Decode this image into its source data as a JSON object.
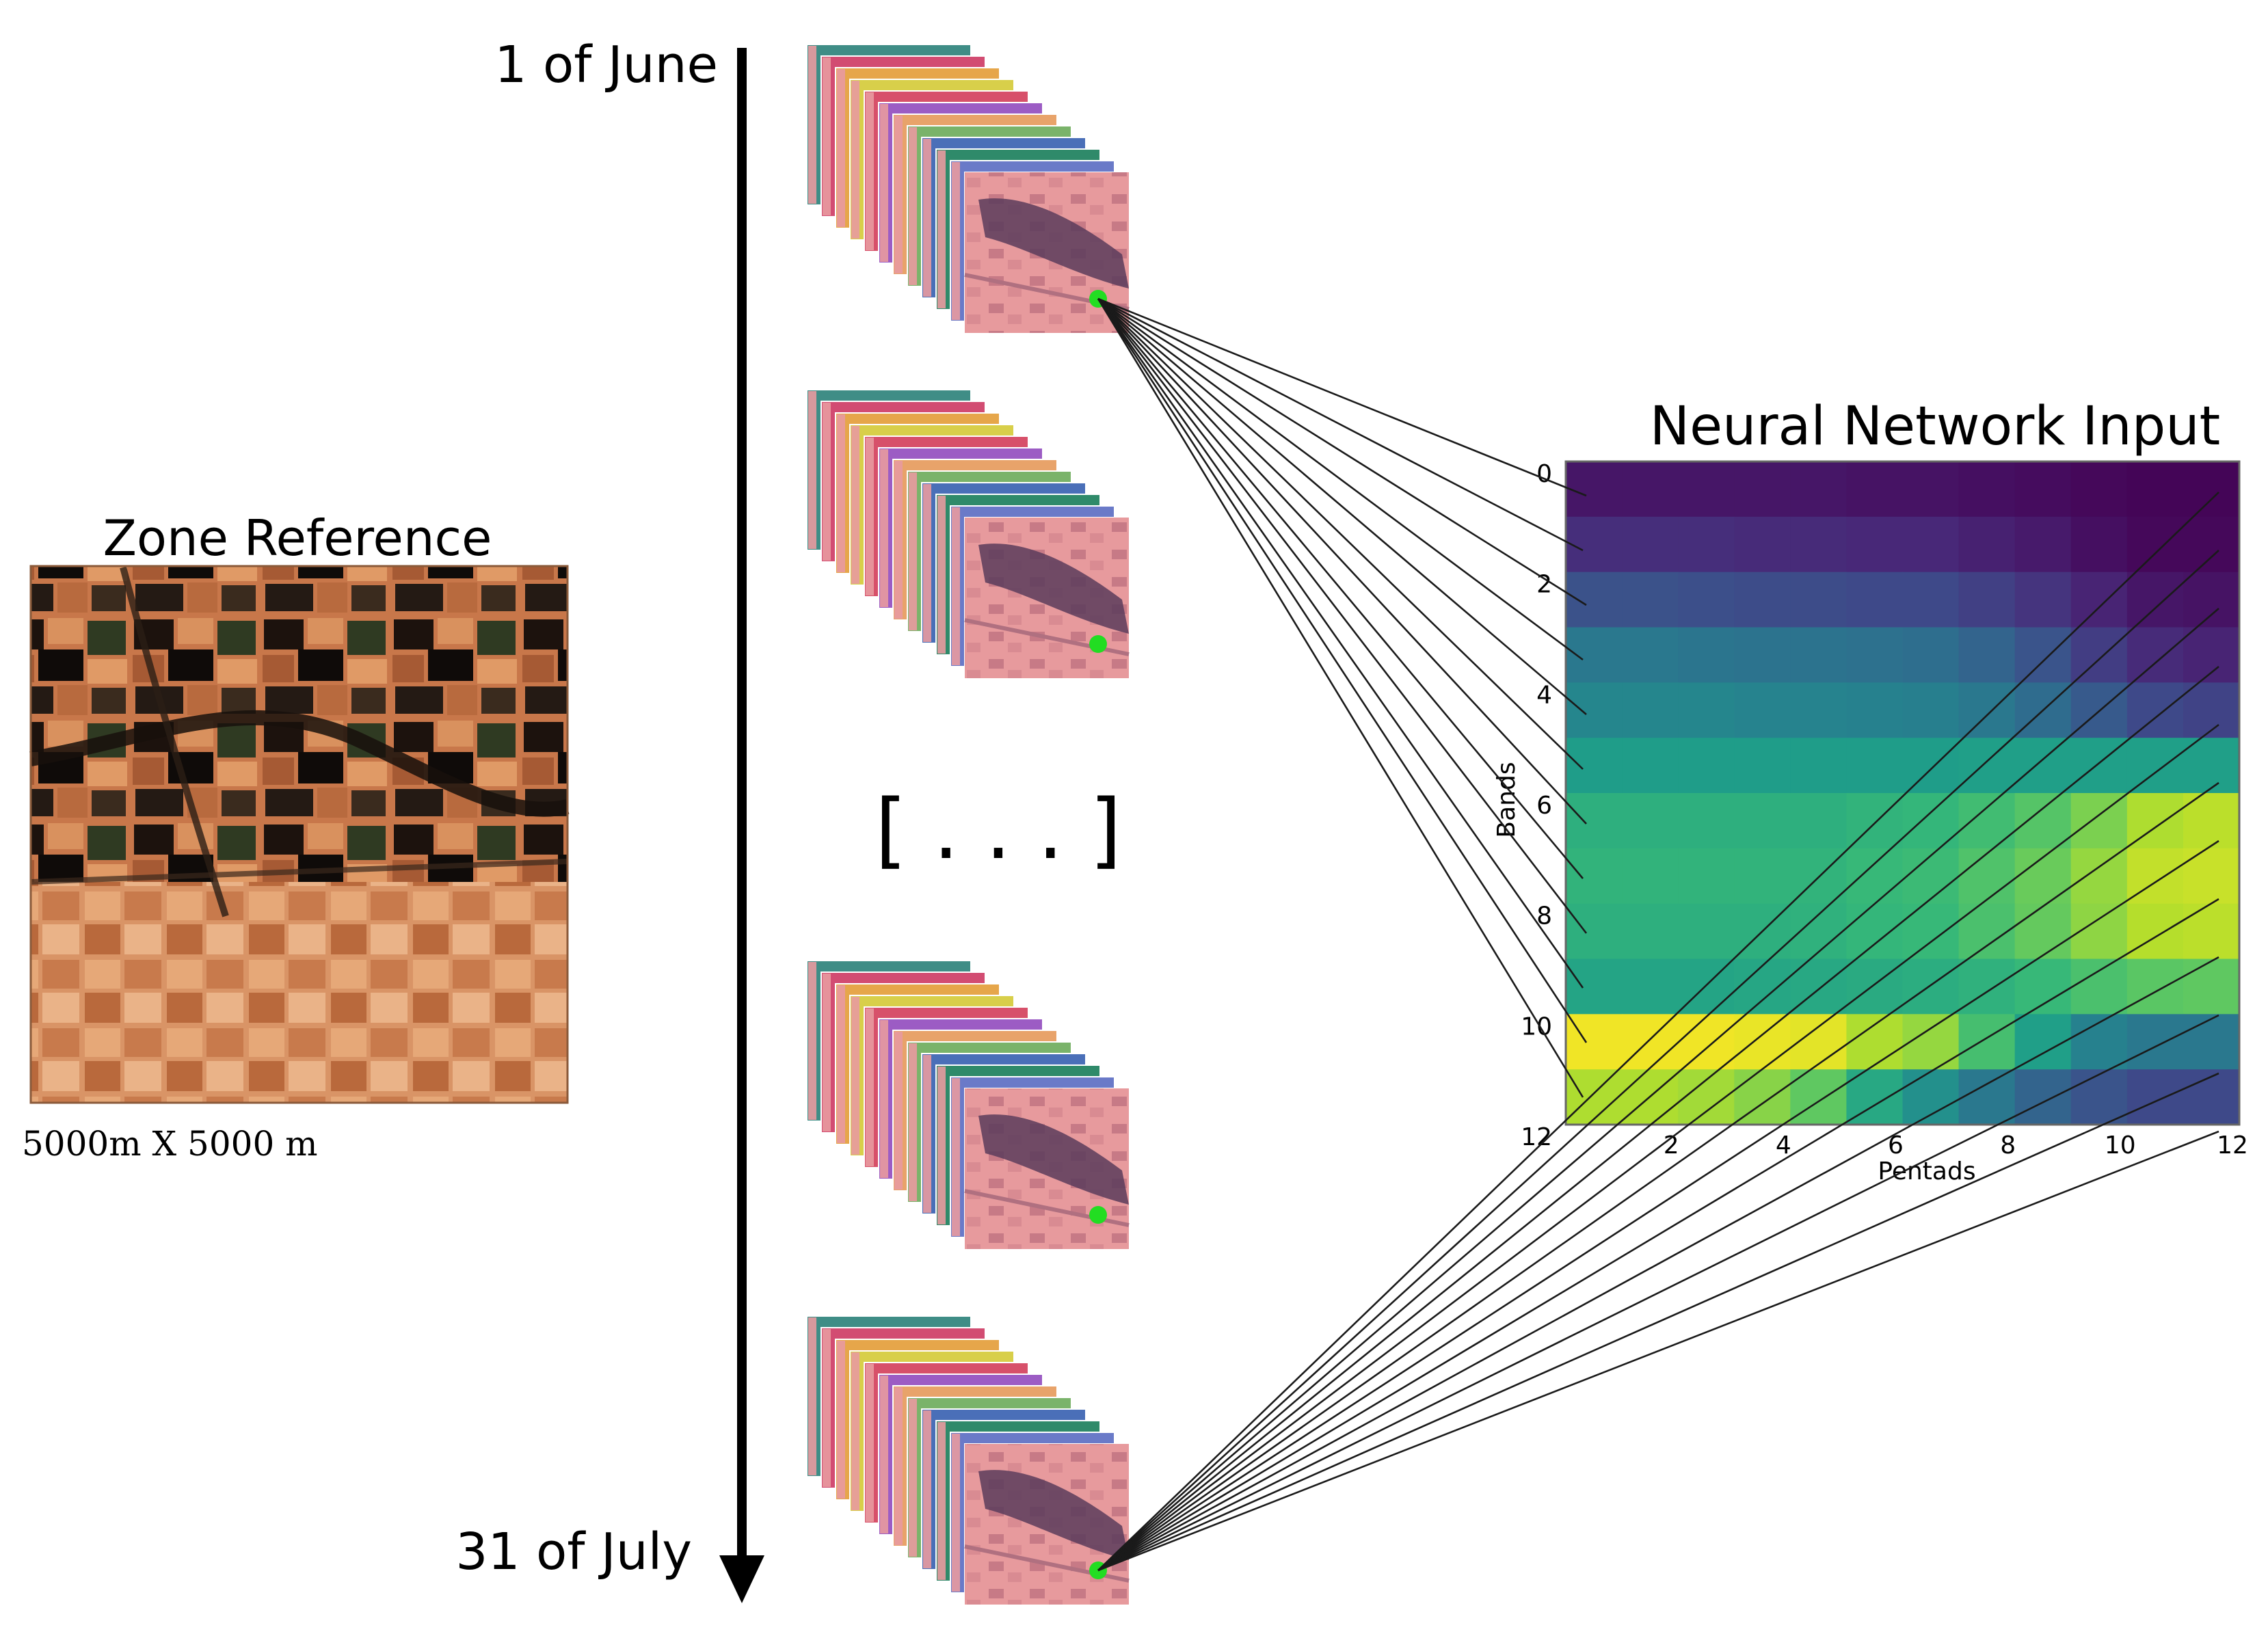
{
  "timeline": {
    "start_label": "1 of June",
    "end_label": "31 of July",
    "ellipsis": "[ . . . ]"
  },
  "zone": {
    "title": "Zone Reference",
    "caption": "5000m X 5000 m"
  },
  "stacks": {
    "count_shown": 4,
    "layers_per_stack": 12,
    "layer_colors": [
      "#3f8d86",
      "#d24c72",
      "#e6a64a",
      "#d8cf4a",
      "#d7506a",
      "#9c5cc4",
      "#e8a36a",
      "#7ab36a",
      "#4a6fb8",
      "#2f8a6a",
      "#6a7ac8",
      "#e8a0b0"
    ],
    "point_color": "#22dd22"
  },
  "nn_input": {
    "title": "Neural Network Input",
    "ylabel": "Bands",
    "xlabel": "Pentads",
    "y_ticks": [
      "0",
      "2",
      "4",
      "6",
      "8",
      "10",
      "12"
    ],
    "x_ticks": [
      "2",
      "4",
      "6",
      "8",
      "10",
      "12"
    ],
    "colormap": "viridis"
  },
  "chart_data": {
    "type": "heatmap",
    "title": "Neural Network Input",
    "xlabel": "Pentads",
    "ylabel": "Bands",
    "n_rows": 12,
    "n_cols": 12,
    "value_range": [
      0,
      1
    ],
    "values": [
      [
        0.06,
        0.06,
        0.06,
        0.06,
        0.06,
        0.05,
        0.05,
        0.04,
        0.03,
        0.02,
        0.01,
        0.01
      ],
      [
        0.13,
        0.13,
        0.13,
        0.12,
        0.12,
        0.11,
        0.11,
        0.09,
        0.07,
        0.04,
        0.02,
        0.02
      ],
      [
        0.25,
        0.25,
        0.24,
        0.23,
        0.23,
        0.22,
        0.22,
        0.19,
        0.15,
        0.1,
        0.06,
        0.05
      ],
      [
        0.4,
        0.4,
        0.39,
        0.38,
        0.38,
        0.37,
        0.36,
        0.32,
        0.26,
        0.18,
        0.12,
        0.1
      ],
      [
        0.46,
        0.46,
        0.46,
        0.45,
        0.45,
        0.44,
        0.43,
        0.4,
        0.35,
        0.28,
        0.22,
        0.2
      ],
      [
        0.55,
        0.55,
        0.55,
        0.55,
        0.55,
        0.55,
        0.55,
        0.56,
        0.56,
        0.56,
        0.56,
        0.56
      ],
      [
        0.63,
        0.63,
        0.63,
        0.63,
        0.63,
        0.65,
        0.66,
        0.69,
        0.73,
        0.8,
        0.88,
        0.9
      ],
      [
        0.65,
        0.65,
        0.65,
        0.65,
        0.65,
        0.67,
        0.68,
        0.72,
        0.77,
        0.84,
        0.91,
        0.92
      ],
      [
        0.63,
        0.63,
        0.63,
        0.63,
        0.64,
        0.66,
        0.67,
        0.71,
        0.76,
        0.83,
        0.89,
        0.9
      ],
      [
        0.58,
        0.58,
        0.58,
        0.59,
        0.6,
        0.61,
        0.62,
        0.64,
        0.67,
        0.71,
        0.74,
        0.75
      ],
      [
        0.98,
        0.98,
        0.98,
        0.97,
        0.96,
        0.88,
        0.84,
        0.7,
        0.56,
        0.44,
        0.4,
        0.4
      ],
      [
        0.88,
        0.88,
        0.86,
        0.82,
        0.75,
        0.6,
        0.5,
        0.4,
        0.32,
        0.26,
        0.22,
        0.22
      ]
    ]
  }
}
